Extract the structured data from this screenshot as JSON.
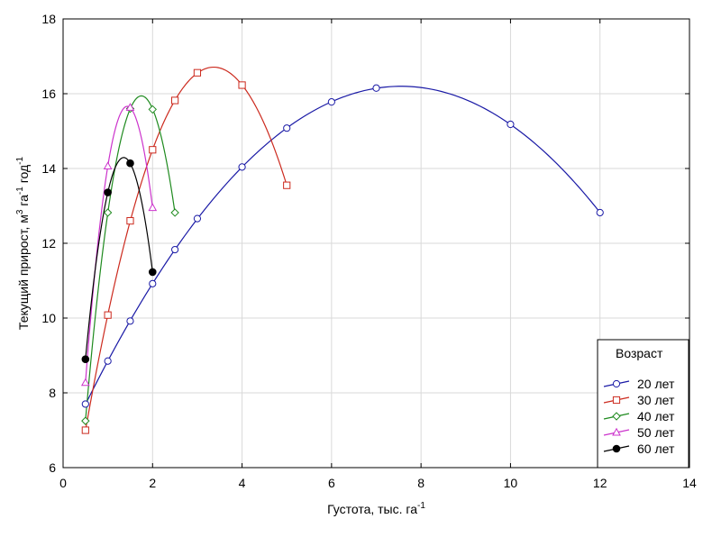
{
  "chart_data": {
    "type": "line",
    "title": "",
    "xlabel": "Густота, тыс. га",
    "xlabel_sup": "-1",
    "ylabel_parts": [
      "Текущий прирост, м",
      "3",
      " га",
      "-1",
      " год",
      "-1"
    ],
    "xlim": [
      0,
      14
    ],
    "ylim": [
      6,
      18
    ],
    "xticks": [
      0,
      2,
      4,
      6,
      8,
      10,
      12,
      14
    ],
    "yticks": [
      6,
      8,
      10,
      12,
      14,
      16,
      18
    ],
    "grid": true,
    "legend": {
      "title": "Возраст",
      "placement": "bottom-right"
    },
    "series": [
      {
        "name": "20 лет",
        "color": "#1a1aa6",
        "marker": "circle",
        "x": [
          0.5,
          1,
          1.5,
          2,
          2.5,
          3,
          4,
          5,
          6,
          7,
          10,
          12
        ],
        "y": [
          7.7,
          8.85,
          9.92,
          10.92,
          11.83,
          12.66,
          14.04,
          15.08,
          15.78,
          16.15,
          15.18,
          12.82
        ]
      },
      {
        "name": "30 лет",
        "color": "#cc2a1e",
        "marker": "square",
        "x": [
          0.5,
          1,
          1.5,
          2,
          2.5,
          3,
          4,
          5
        ],
        "y": [
          7.0,
          10.08,
          12.6,
          14.5,
          15.82,
          16.56,
          16.23,
          13.55
        ]
      },
      {
        "name": "40 лет",
        "color": "#1e8a1e",
        "marker": "diamond",
        "x": [
          0.5,
          1,
          1.5,
          2,
          2.5
        ],
        "y": [
          7.25,
          12.82,
          15.6,
          15.58,
          12.82
        ]
      },
      {
        "name": "50 лет",
        "color": "#cc33cc",
        "marker": "triangle",
        "x": [
          0.5,
          1,
          1.5,
          2
        ],
        "y": [
          8.27,
          14.06,
          15.63,
          12.95
        ]
      },
      {
        "name": "60 лет",
        "color": "#000000",
        "marker": "filled-circle",
        "x": [
          0.5,
          1,
          1.5,
          2
        ],
        "y": [
          8.9,
          13.36,
          14.14,
          11.23
        ]
      }
    ]
  }
}
